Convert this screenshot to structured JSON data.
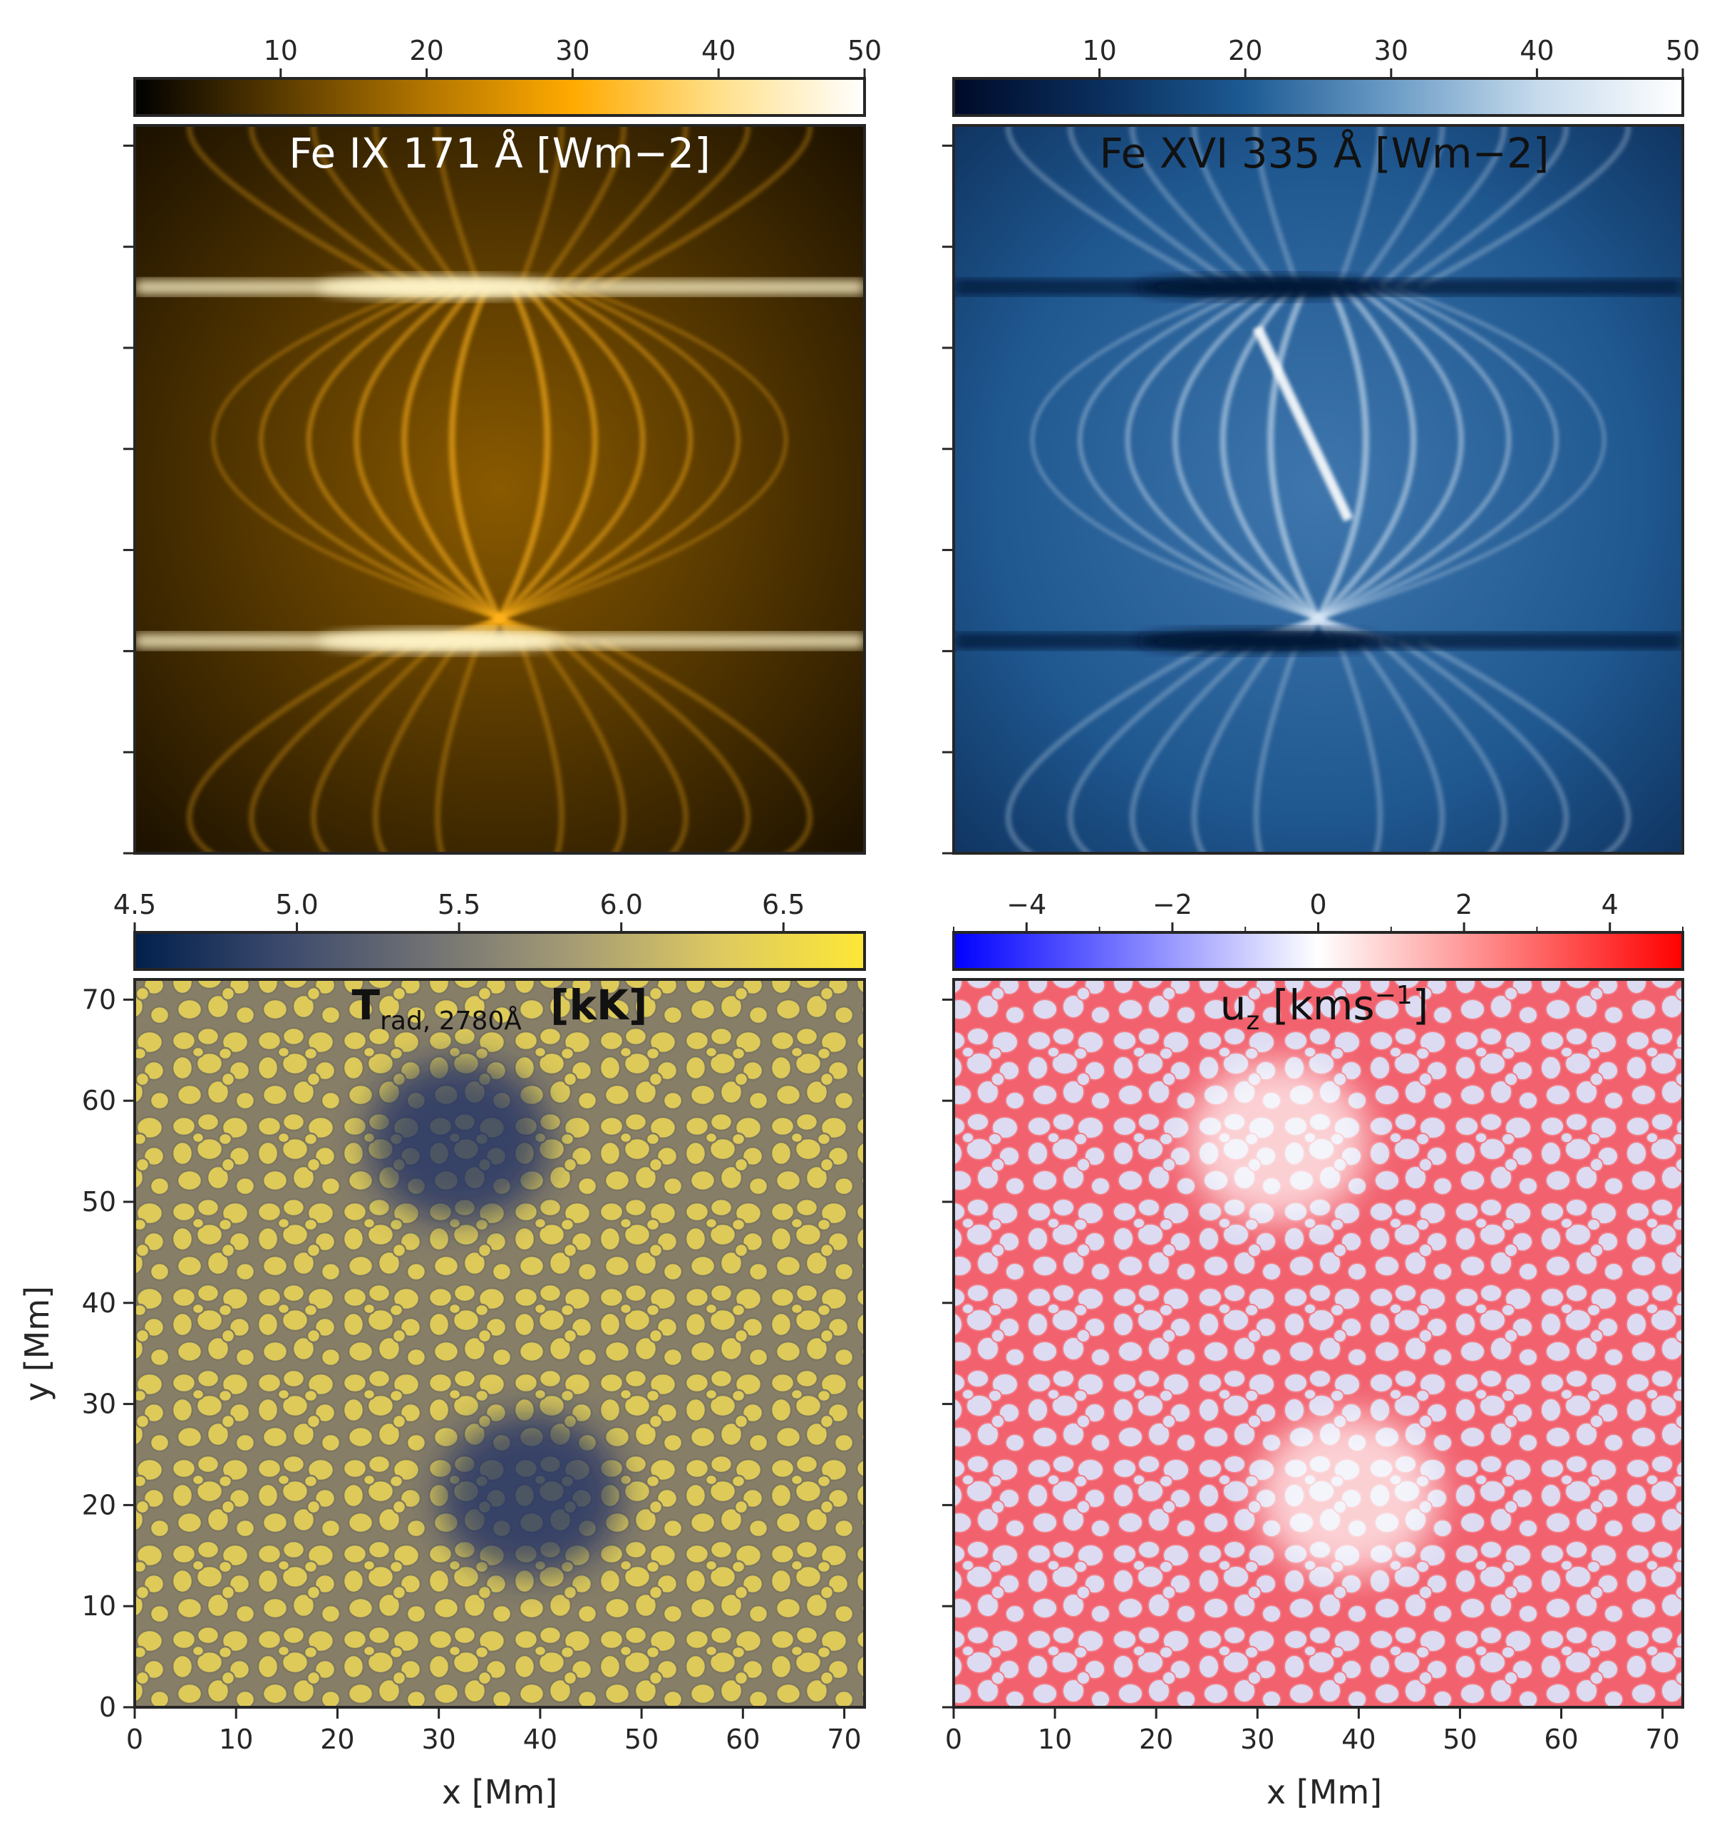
{
  "chart_data": [
    {
      "type": "heatmap",
      "panel": "top-left",
      "title": "Fe IX 171 Å [Wm−2]",
      "title_color": "#ffffff",
      "colormap": "gold",
      "colormap_stops": [
        "#000000",
        "#5a3b00",
        "#b37600",
        "#ffaa00",
        "#ffe08a",
        "#ffffff"
      ],
      "colorbar": {
        "range": [
          0,
          50
        ],
        "ticks": [
          10,
          20,
          30,
          40,
          50
        ],
        "tick_labels": [
          "10",
          "20",
          "30",
          "40",
          "50"
        ]
      },
      "features": "bright bipolar coronal loop arcades; bright horizontal filaments near y≈56 and y≈21 Mm",
      "xlim": [
        0,
        72
      ],
      "ylim": [
        0,
        72
      ],
      "yticks": [
        0,
        10,
        20,
        30,
        40,
        50,
        60,
        70
      ],
      "show_tick_labels": false
    },
    {
      "type": "heatmap",
      "panel": "top-right",
      "title": "Fe XVI 335 Å [Wm−2]",
      "title_color": "#111111",
      "colormap": "blues",
      "colormap_stops": [
        "#000a28",
        "#0a2e5c",
        "#1d5a93",
        "#6b9cc6",
        "#c5daec",
        "#ffffff"
      ],
      "colorbar": {
        "range": [
          0,
          50
        ],
        "ticks": [
          10,
          20,
          30,
          40,
          50
        ],
        "tick_labels": [
          "10",
          "20",
          "30",
          "40",
          "50"
        ]
      },
      "features": "bright loop arcades; dark bands along the polarity lines",
      "xlim": [
        0,
        72
      ],
      "ylim": [
        0,
        72
      ],
      "yticks": [
        0,
        10,
        20,
        30,
        40,
        50,
        60,
        70
      ],
      "show_tick_labels": false
    },
    {
      "type": "heatmap",
      "panel": "bottom-left",
      "title_main": "T",
      "title_sub": "rad, 2780Å",
      "title_unit": "[kK]",
      "title_color": "#111111",
      "colormap": "cividis",
      "colormap_stops": [
        "#00204c",
        "#3b496c",
        "#707173",
        "#a59c74",
        "#ddc961",
        "#fde737"
      ],
      "colorbar": {
        "range": [
          4.5,
          6.75
        ],
        "ticks": [
          4.5,
          5.0,
          5.5,
          6.0,
          6.5
        ],
        "tick_labels": [
          "4.5",
          "5.0",
          "5.5",
          "6.0",
          "6.5"
        ]
      },
      "features": "granulation pattern; two dark plage regions centred near (32, 56) Mm and (39, 21) Mm",
      "xlabel": "x [Mm]",
      "ylabel": "y [Mm]",
      "xlim": [
        0,
        72
      ],
      "ylim": [
        0,
        72
      ],
      "xticks": [
        0,
        10,
        20,
        30,
        40,
        50,
        60,
        70
      ],
      "xtick_labels": [
        "0",
        "10",
        "20",
        "30",
        "40",
        "50",
        "60",
        "70"
      ],
      "yticks": [
        0,
        10,
        20,
        30,
        40,
        50,
        60,
        70
      ],
      "ytick_labels": [
        "0",
        "10",
        "20",
        "30",
        "40",
        "50",
        "60",
        "70"
      ]
    },
    {
      "type": "heatmap",
      "panel": "bottom-right",
      "title_main": "u",
      "title_sub": "z",
      "title_unit_pre": " [kms",
      "title_sup": "−1",
      "title_unit_post": "]",
      "title_color": "#111111",
      "colormap": "bwr",
      "colormap_stops": [
        "#0000ff",
        "#8080ff",
        "#ffffff",
        "#ff8080",
        "#ff0000"
      ],
      "colorbar": {
        "range": [
          -5,
          5
        ],
        "ticks": [
          -4,
          -2,
          0,
          2,
          4
        ],
        "minor_ticks": [
          -5,
          -3,
          -1,
          1,
          3,
          5
        ],
        "tick_labels": [
          "−4",
          "−2",
          "0",
          "2",
          "4"
        ]
      },
      "features": "granular up/downflow network; weak velocities inside the two plage regions",
      "xlabel": "x [Mm]",
      "xlim": [
        0,
        72
      ],
      "ylim": [
        0,
        72
      ],
      "xticks": [
        0,
        10,
        20,
        30,
        40,
        50,
        60,
        70
      ],
      "xtick_labels": [
        "0",
        "10",
        "20",
        "30",
        "40",
        "50",
        "60",
        "70"
      ],
      "yticks": [
        0,
        10,
        20,
        30,
        40,
        50,
        60,
        70
      ],
      "show_ytick_labels": false
    }
  ]
}
